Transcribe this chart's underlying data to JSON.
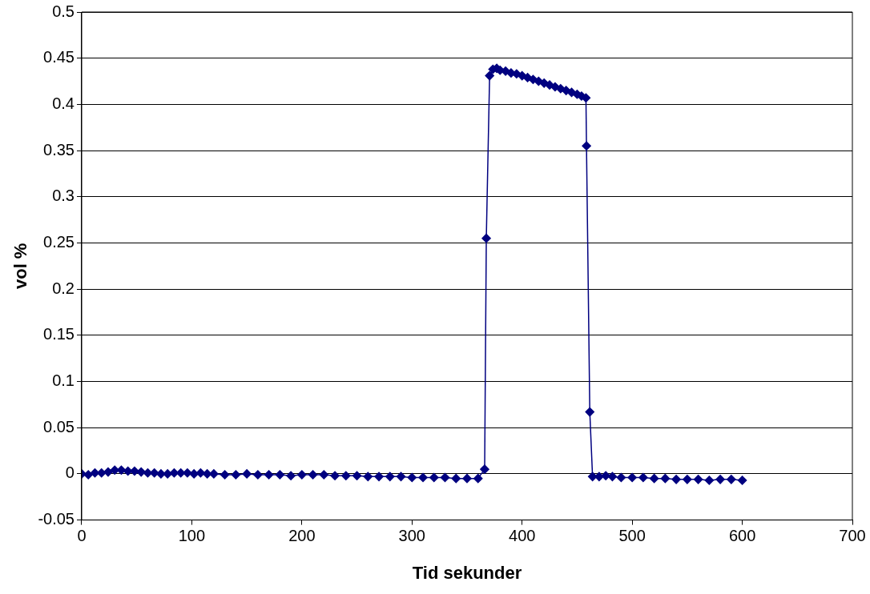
{
  "chart_data": {
    "type": "line",
    "xlabel": "Tid sekunder",
    "ylabel": "vol %",
    "marker": "diamond",
    "line_style": "solid",
    "grid": "y",
    "legend": false,
    "xlim": [
      0,
      700
    ],
    "xticks": [
      0,
      100,
      200,
      300,
      400,
      500,
      600,
      700
    ],
    "ylim": [
      -0.05,
      0.5
    ],
    "yticks": [
      -0.05,
      0,
      0.05,
      0.1,
      0.15,
      0.2,
      0.25,
      0.3,
      0.35,
      0.4,
      0.45,
      0.5
    ],
    "series": [
      {
        "color": "#000080",
        "x": [
          0,
          6,
          12,
          18,
          24,
          30,
          36,
          42,
          48,
          54,
          60,
          66,
          72,
          78,
          84,
          90,
          96,
          102,
          108,
          114,
          120,
          130,
          140,
          150,
          160,
          170,
          180,
          190,
          200,
          210,
          220,
          230,
          240,
          250,
          260,
          270,
          280,
          290,
          300,
          310,
          320,
          330,
          340,
          350,
          360,
          366,
          367.5,
          370.5,
          373.5,
          377,
          380,
          385,
          390,
          395,
          400,
          405,
          410,
          415,
          420,
          425,
          430,
          435,
          440,
          445,
          450,
          454,
          458,
          458.5,
          461.5,
          464,
          470,
          476,
          482,
          490,
          500,
          510,
          520,
          530,
          540,
          550,
          560,
          570,
          580,
          590,
          600
        ],
        "values": [
          0,
          -0.001,
          0.001,
          0.001,
          0.002,
          0.004,
          0.004,
          0.003,
          0.003,
          0.002,
          0.001,
          0.001,
          0,
          0,
          0.001,
          0.001,
          0.001,
          0,
          0.001,
          0,
          0,
          -0.001,
          -0.001,
          0,
          -0.001,
          -0.001,
          -0.001,
          -0.002,
          -0.001,
          -0.001,
          -0.001,
          -0.002,
          -0.002,
          -0.002,
          -0.003,
          -0.003,
          -0.003,
          -0.003,
          -0.004,
          -0.004,
          -0.004,
          -0.004,
          -0.005,
          -0.005,
          -0.005,
          0.005,
          0.255,
          0.431,
          0.438,
          0.439,
          0.437,
          0.436,
          0.434,
          0.433,
          0.431,
          0.429,
          0.427,
          0.425,
          0.423,
          0.421,
          0.419,
          0.417,
          0.415,
          0.413,
          0.411,
          0.409,
          0.407,
          0.355,
          0.067,
          -0.003,
          -0.003,
          -0.002,
          -0.003,
          -0.004,
          -0.004,
          -0.004,
          -0.005,
          -0.005,
          -0.006,
          -0.006,
          -0.006,
          -0.007,
          -0.006,
          -0.006,
          -0.007
        ]
      }
    ]
  }
}
